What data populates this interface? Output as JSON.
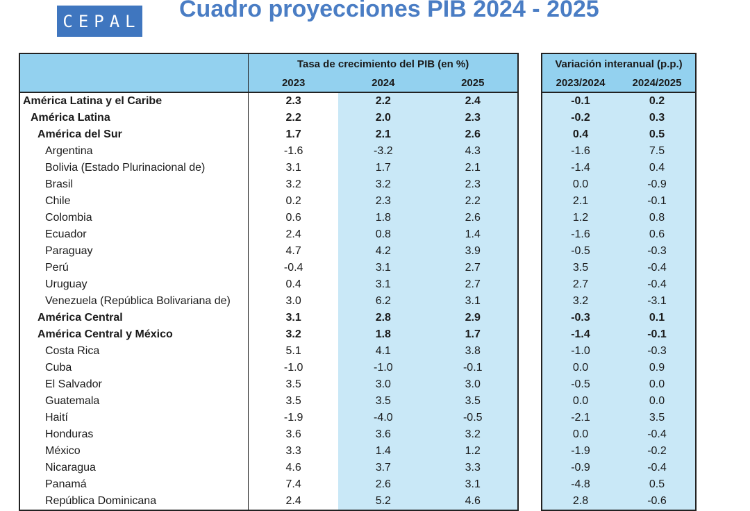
{
  "logo": {
    "text": "CEPAL",
    "color": "#3f76bf"
  },
  "title": "Cuadro proyecciones PIB 2024 - 2025",
  "growth_header": "Tasa de crecimiento del PIB (en %)",
  "variation_header": "Variación interanual (p.p.)",
  "growth_years": [
    "2023",
    "2024",
    "2025"
  ],
  "variation_periods": [
    "2023/2024",
    "2024/2025"
  ],
  "colors": {
    "header": "#93d1ef",
    "shade": "#c9e8f7",
    "title": "#4a7dc4"
  },
  "rows": [
    {
      "name": "América Latina y el Caribe",
      "level": 0,
      "g2023": "2.3",
      "g2024": "2.2",
      "g2025": "2.4",
      "v1": "-0.1",
      "v2": "0.2"
    },
    {
      "name": "América Latina",
      "level": 1,
      "g2023": "2.2",
      "g2024": "2.0",
      "g2025": "2.3",
      "v1": "-0.2",
      "v2": "0.3"
    },
    {
      "name": "América del Sur",
      "level": 2,
      "g2023": "1.7",
      "g2024": "2.1",
      "g2025": "2.6",
      "v1": "0.4",
      "v2": "0.5"
    },
    {
      "name": "Argentina",
      "level": 3,
      "g2023": "-1.6",
      "g2024": "-3.2",
      "g2025": "4.3",
      "v1": "-1.6",
      "v2": "7.5"
    },
    {
      "name": "Bolivia (Estado Plurinacional de)",
      "level": 3,
      "g2023": "3.1",
      "g2024": "1.7",
      "g2025": "2.1",
      "v1": "-1.4",
      "v2": "0.4"
    },
    {
      "name": "Brasil",
      "level": 3,
      "g2023": "3.2",
      "g2024": "3.2",
      "g2025": "2.3",
      "v1": "0.0",
      "v2": "-0.9"
    },
    {
      "name": "Chile",
      "level": 3,
      "g2023": "0.2",
      "g2024": "2.3",
      "g2025": "2.2",
      "v1": "2.1",
      "v2": "-0.1"
    },
    {
      "name": "Colombia",
      "level": 3,
      "g2023": "0.6",
      "g2024": "1.8",
      "g2025": "2.6",
      "v1": "1.2",
      "v2": "0.8"
    },
    {
      "name": "Ecuador",
      "level": 3,
      "g2023": "2.4",
      "g2024": "0.8",
      "g2025": "1.4",
      "v1": "-1.6",
      "v2": "0.6"
    },
    {
      "name": "Paraguay",
      "level": 3,
      "g2023": "4.7",
      "g2024": "4.2",
      "g2025": "3.9",
      "v1": "-0.5",
      "v2": "-0.3"
    },
    {
      "name": "Perú",
      "level": 3,
      "g2023": "-0.4",
      "g2024": "3.1",
      "g2025": "2.7",
      "v1": "3.5",
      "v2": "-0.4"
    },
    {
      "name": "Uruguay",
      "level": 3,
      "g2023": "0.4",
      "g2024": "3.1",
      "g2025": "2.7",
      "v1": "2.7",
      "v2": "-0.4"
    },
    {
      "name": "Venezuela (República Bolivariana de)",
      "level": 3,
      "g2023": "3.0",
      "g2024": "6.2",
      "g2025": "3.1",
      "v1": "3.2",
      "v2": "-3.1"
    },
    {
      "name": "América Central",
      "level": 2,
      "g2023": "3.1",
      "g2024": "2.8",
      "g2025": "2.9",
      "v1": "-0.3",
      "v2": "0.1"
    },
    {
      "name": "América Central y México",
      "level": 2,
      "g2023": "3.2",
      "g2024": "1.8",
      "g2025": "1.7",
      "v1": "-1.4",
      "v2": "-0.1"
    },
    {
      "name": "Costa Rica",
      "level": 3,
      "g2023": "5.1",
      "g2024": "4.1",
      "g2025": "3.8",
      "v1": "-1.0",
      "v2": "-0.3"
    },
    {
      "name": "Cuba",
      "level": 3,
      "g2023": "-1.0",
      "g2024": "-1.0",
      "g2025": "-0.1",
      "v1": "0.0",
      "v2": "0.9"
    },
    {
      "name": "El Salvador",
      "level": 3,
      "g2023": "3.5",
      "g2024": "3.0",
      "g2025": "3.0",
      "v1": "-0.5",
      "v2": "0.0"
    },
    {
      "name": "Guatemala",
      "level": 3,
      "g2023": "3.5",
      "g2024": "3.5",
      "g2025": "3.5",
      "v1": "0.0",
      "v2": "0.0"
    },
    {
      "name": "Haití",
      "level": 3,
      "g2023": "-1.9",
      "g2024": "-4.0",
      "g2025": "-0.5",
      "v1": "-2.1",
      "v2": "3.5"
    },
    {
      "name": "Honduras",
      "level": 3,
      "g2023": "3.6",
      "g2024": "3.6",
      "g2025": "3.2",
      "v1": "0.0",
      "v2": "-0.4"
    },
    {
      "name": "México",
      "level": 3,
      "g2023": "3.3",
      "g2024": "1.4",
      "g2025": "1.2",
      "v1": "-1.9",
      "v2": "-0.2"
    },
    {
      "name": "Nicaragua",
      "level": 3,
      "g2023": "4.6",
      "g2024": "3.7",
      "g2025": "3.3",
      "v1": "-0.9",
      "v2": "-0.4"
    },
    {
      "name": "Panamá",
      "level": 3,
      "g2023": "7.4",
      "g2024": "2.6",
      "g2025": "3.1",
      "v1": "-4.8",
      "v2": "0.5"
    },
    {
      "name": "República Dominicana",
      "level": 3,
      "g2023": "2.4",
      "g2024": "5.2",
      "g2025": "4.6",
      "v1": "2.8",
      "v2": "-0.6"
    }
  ]
}
